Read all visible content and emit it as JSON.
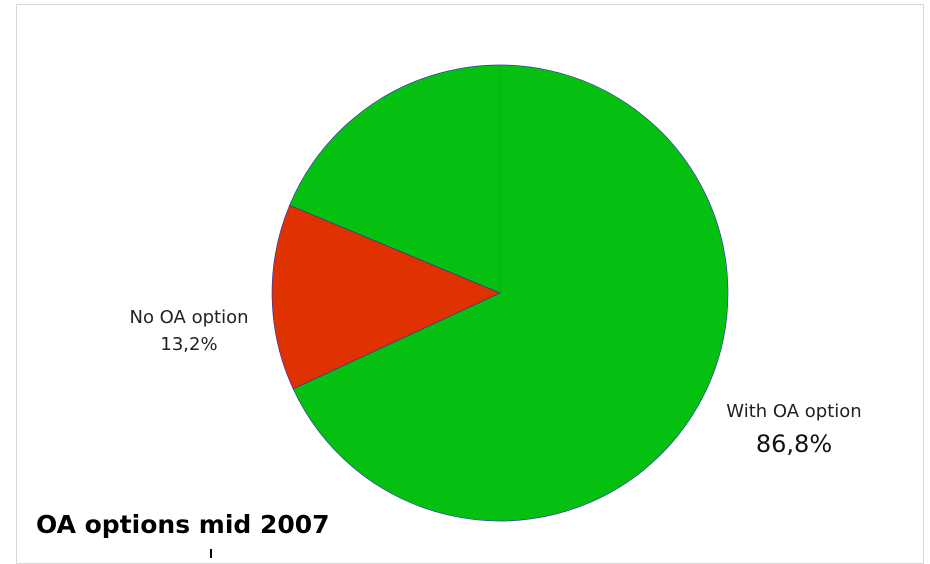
{
  "chart_data": {
    "type": "pie",
    "title": "OA options mid 2007",
    "slices": [
      {
        "label": "With OA option",
        "value": 86.8,
        "display": "86,8%",
        "color": "#05c010"
      },
      {
        "label": "No OA option",
        "value": 13.2,
        "display": "13,2%",
        "color": "#df3200"
      }
    ],
    "edge_color": "#2a2ab0"
  }
}
